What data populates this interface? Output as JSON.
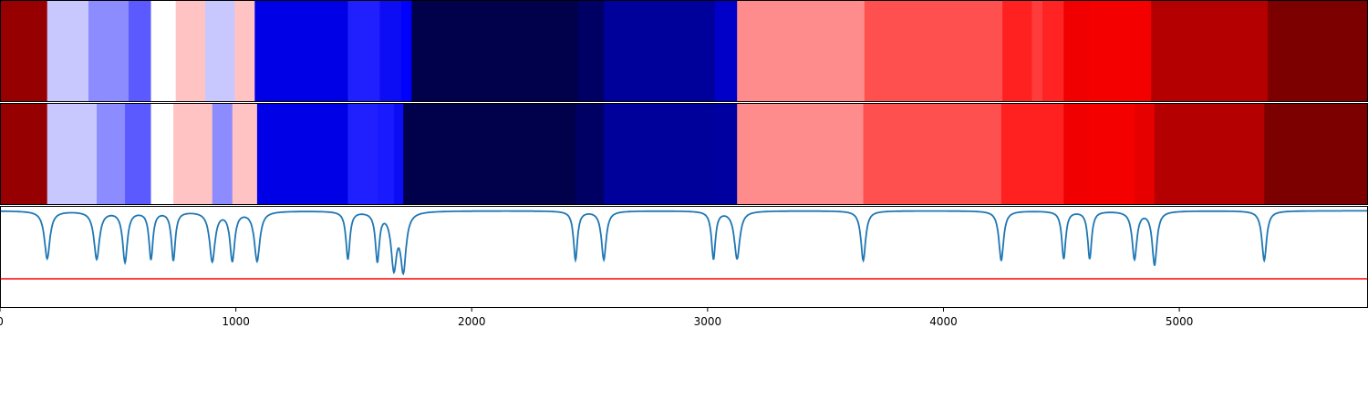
{
  "chart_data": [
    {
      "type": "heatmap",
      "panel": "top",
      "xlim": [
        0,
        5800
      ],
      "colormap": "seismic",
      "segments": [
        {
          "x0": 0,
          "x1": 200,
          "color": "#960000"
        },
        {
          "x0": 200,
          "x1": 375,
          "color": "#c8c8ff"
        },
        {
          "x0": 375,
          "x1": 545,
          "color": "#8c8cff"
        },
        {
          "x0": 545,
          "x1": 640,
          "color": "#5a5aff"
        },
        {
          "x0": 640,
          "x1": 745,
          "color": "#ffffff"
        },
        {
          "x0": 745,
          "x1": 870,
          "color": "#ffc3c3"
        },
        {
          "x0": 870,
          "x1": 995,
          "color": "#c8c8ff"
        },
        {
          "x0": 995,
          "x1": 1080,
          "color": "#ffc3c3"
        },
        {
          "x0": 1080,
          "x1": 1475,
          "color": "#0000e6"
        },
        {
          "x0": 1475,
          "x1": 1610,
          "color": "#2020ff"
        },
        {
          "x0": 1610,
          "x1": 1700,
          "color": "#0d0df5"
        },
        {
          "x0": 1700,
          "x1": 1745,
          "color": "#0000ff"
        },
        {
          "x0": 1745,
          "x1": 2450,
          "color": "#00004b"
        },
        {
          "x0": 2450,
          "x1": 2560,
          "color": "#000064"
        },
        {
          "x0": 2560,
          "x1": 3030,
          "color": "#00009b"
        },
        {
          "x0": 3030,
          "x1": 3125,
          "color": "#0000c8"
        },
        {
          "x0": 3125,
          "x1": 3665,
          "color": "#ff8c8c"
        },
        {
          "x0": 3665,
          "x1": 4250,
          "color": "#ff5050"
        },
        {
          "x0": 4250,
          "x1": 4375,
          "color": "#ff2020"
        },
        {
          "x0": 4375,
          "x1": 4420,
          "color": "#ff3c3c"
        },
        {
          "x0": 4420,
          "x1": 4510,
          "color": "#ff2323"
        },
        {
          "x0": 4510,
          "x1": 4620,
          "color": "#f00000"
        },
        {
          "x0": 4620,
          "x1": 4880,
          "color": "#f40000"
        },
        {
          "x0": 4880,
          "x1": 5375,
          "color": "#b40000"
        },
        {
          "x0": 5375,
          "x1": 5800,
          "color": "#7d0000"
        }
      ]
    },
    {
      "type": "heatmap",
      "panel": "middle",
      "xlim": [
        0,
        5800
      ],
      "colormap": "seismic",
      "segments": [
        {
          "x0": 0,
          "x1": 200,
          "color": "#960000"
        },
        {
          "x0": 200,
          "x1": 410,
          "color": "#c8c8ff"
        },
        {
          "x0": 410,
          "x1": 530,
          "color": "#8c8cff"
        },
        {
          "x0": 530,
          "x1": 640,
          "color": "#5a5aff"
        },
        {
          "x0": 640,
          "x1": 735,
          "color": "#ffffff"
        },
        {
          "x0": 735,
          "x1": 900,
          "color": "#ffc3c3"
        },
        {
          "x0": 900,
          "x1": 985,
          "color": "#8c8cff"
        },
        {
          "x0": 985,
          "x1": 1090,
          "color": "#ffc3c3"
        },
        {
          "x0": 1090,
          "x1": 1475,
          "color": "#0000e6"
        },
        {
          "x0": 1475,
          "x1": 1600,
          "color": "#2020ff"
        },
        {
          "x0": 1600,
          "x1": 1670,
          "color": "#1a1aff"
        },
        {
          "x0": 1670,
          "x1": 1710,
          "color": "#0d0df5"
        },
        {
          "x0": 1710,
          "x1": 2440,
          "color": "#00004b"
        },
        {
          "x0": 2440,
          "x1": 2560,
          "color": "#000064"
        },
        {
          "x0": 2560,
          "x1": 3025,
          "color": "#00009b"
        },
        {
          "x0": 3025,
          "x1": 3125,
          "color": "#0000a0"
        },
        {
          "x0": 3125,
          "x1": 3660,
          "color": "#ff8c8c"
        },
        {
          "x0": 3660,
          "x1": 4245,
          "color": "#ff5050"
        },
        {
          "x0": 4245,
          "x1": 4510,
          "color": "#ff2020"
        },
        {
          "x0": 4510,
          "x1": 4620,
          "color": "#f00000"
        },
        {
          "x0": 4620,
          "x1": 4810,
          "color": "#f40000"
        },
        {
          "x0": 4810,
          "x1": 4895,
          "color": "#e60000"
        },
        {
          "x0": 4895,
          "x1": 5360,
          "color": "#b40000"
        },
        {
          "x0": 5360,
          "x1": 5800,
          "color": "#7d0000"
        }
      ]
    },
    {
      "type": "line",
      "panel": "bottom",
      "xlim": [
        0,
        5800
      ],
      "ylim": [
        -1,
        0.05
      ],
      "grid": false,
      "series": [
        {
          "color": "#1f77b4",
          "dips": [
            {
              "x": 200,
              "depth": 0.49,
              "width": 14
            },
            {
              "x": 410,
              "depth": 0.49,
              "width": 14
            },
            {
              "x": 530,
              "depth": 0.52,
              "width": 12
            },
            {
              "x": 640,
              "depth": 0.49,
              "width": 10
            },
            {
              "x": 735,
              "depth": 0.5,
              "width": 10
            },
            {
              "x": 900,
              "depth": 0.51,
              "width": 14
            },
            {
              "x": 985,
              "depth": 0.5,
              "width": 12
            },
            {
              "x": 1090,
              "depth": 0.51,
              "width": 14
            },
            {
              "x": 1475,
              "depth": 0.49,
              "width": 10
            },
            {
              "x": 1600,
              "depth": 0.5,
              "width": 10
            },
            {
              "x": 1670,
              "depth": 0.56,
              "width": 14
            },
            {
              "x": 1710,
              "depth": 0.58,
              "width": 14
            },
            {
              "x": 2440,
              "depth": 0.5,
              "width": 10
            },
            {
              "x": 2560,
              "depth": 0.5,
              "width": 12
            },
            {
              "x": 3025,
              "depth": 0.49,
              "width": 10
            },
            {
              "x": 3125,
              "depth": 0.49,
              "width": 14
            },
            {
              "x": 3660,
              "depth": 0.51,
              "width": 12
            },
            {
              "x": 4245,
              "depth": 0.51,
              "width": 12
            },
            {
              "x": 4510,
              "depth": 0.49,
              "width": 10
            },
            {
              "x": 4620,
              "depth": 0.49,
              "width": 10
            },
            {
              "x": 4810,
              "depth": 0.49,
              "width": 12
            },
            {
              "x": 4895,
              "depth": 0.55,
              "width": 12
            },
            {
              "x": 5360,
              "depth": 0.51,
              "width": 12
            }
          ]
        },
        {
          "color": "#ff0000",
          "y": -0.7
        }
      ],
      "xticks": [
        "0",
        "1000",
        "2000",
        "3000",
        "4000",
        "5000"
      ],
      "xtick_values": [
        0,
        1000,
        2000,
        3000,
        4000,
        5000
      ]
    }
  ]
}
